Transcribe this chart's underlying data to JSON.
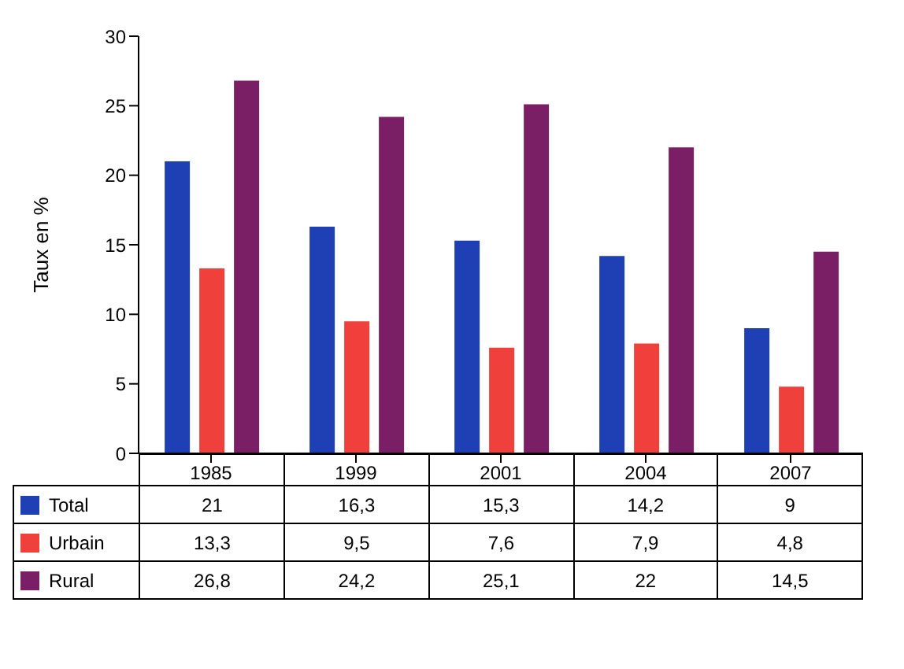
{
  "chart_data": {
    "type": "bar",
    "ylabel": "Taux en %",
    "categories": [
      "1985",
      "1999",
      "2001",
      "2004",
      "2007"
    ],
    "series": [
      {
        "name": "Total",
        "color": "#1f3fb4",
        "values": [
          21,
          16.3,
          15.3,
          14.2,
          9
        ],
        "value_labels": [
          "21",
          "16,3",
          "15,3",
          "14,2",
          "9"
        ]
      },
      {
        "name": "Urbain",
        "color": "#f0403c",
        "values": [
          13.3,
          9.5,
          7.6,
          7.9,
          4.8
        ],
        "value_labels": [
          "13,3",
          "9,5",
          "7,6",
          "7,9",
          "4,8"
        ]
      },
      {
        "name": "Rural",
        "color": "#7a1f66",
        "values": [
          26.8,
          24.2,
          25.1,
          22,
          14.5
        ],
        "value_labels": [
          "26,8",
          "24,2",
          "25,1",
          "22",
          "14,5"
        ]
      }
    ],
    "ylim": [
      0,
      30
    ],
    "yticks": [
      0,
      5,
      10,
      15,
      20,
      25,
      30
    ],
    "grid": false,
    "legend": "bottom"
  }
}
